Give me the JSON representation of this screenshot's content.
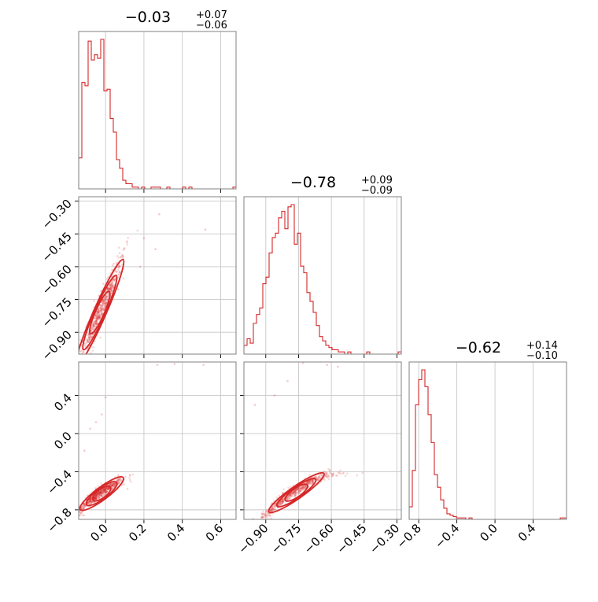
{
  "chart_data": {
    "type": "corner",
    "grid": true,
    "colors": {
      "series": "#d62728",
      "frame": "#808080",
      "grid": "#c8c8c8"
    },
    "panels": [
      {
        "kind": "hist",
        "row": 0,
        "col": 0,
        "title": {
          "median": "−0.03",
          "plus": "+0.07",
          "minus": "−0.06"
        },
        "xlim": [
          -0.14,
          0.68
        ],
        "bins": {
          "start": -0.14,
          "width": 0.0164,
          "counts": [
            18,
            62,
            60,
            86,
            75,
            78,
            76,
            87,
            57,
            58,
            41,
            33,
            17,
            12,
            5,
            3,
            3,
            1,
            1,
            0,
            1,
            0,
            0,
            1,
            1,
            1,
            0,
            0,
            1,
            0,
            0,
            0,
            0,
            1,
            0,
            1,
            0,
            0,
            0,
            0,
            0,
            0,
            0,
            0,
            0,
            0,
            0,
            0,
            0,
            1
          ]
        }
      },
      {
        "kind": "hist",
        "row": 1,
        "col": 1,
        "title": {
          "median": "−0.78",
          "plus": "+0.09",
          "minus": "−0.09"
        },
        "xlim": [
          -1.0,
          -0.28
        ],
        "bins": {
          "start": -1.0,
          "width": 0.0144,
          "counts": [
            4,
            7,
            5,
            14,
            18,
            21,
            32,
            35,
            46,
            53,
            55,
            62,
            65,
            57,
            67,
            68,
            50,
            55,
            40,
            37,
            28,
            24,
            19,
            13,
            8,
            6,
            4,
            3,
            2,
            2,
            1,
            1,
            0,
            1,
            0,
            0,
            0,
            0,
            0,
            1,
            0,
            0,
            0,
            0,
            0,
            0,
            0,
            0,
            0,
            1
          ]
        }
      },
      {
        "kind": "hist",
        "row": 2,
        "col": 2,
        "title": {
          "median": "−0.62",
          "plus": "+0.14",
          "minus": "−0.10"
        },
        "xlim": [
          -0.9,
          0.75
        ],
        "bins": {
          "start": -0.9,
          "width": 0.033,
          "counts": [
            9,
            35,
            82,
            100,
            107,
            95,
            75,
            55,
            32,
            23,
            14,
            8,
            4,
            3,
            2,
            1,
            1,
            1,
            0,
            1,
            0,
            0,
            0,
            0,
            0,
            0,
            0,
            0,
            0,
            0,
            0,
            0,
            0,
            0,
            0,
            0,
            0,
            0,
            0,
            0,
            0,
            0,
            0,
            0,
            0,
            0,
            0,
            0,
            1,
            1
          ]
        }
      },
      {
        "kind": "scatter",
        "row": 1,
        "col": 0,
        "xlim": [
          -0.14,
          0.68
        ],
        "ylim": [
          -1.0,
          -0.28
        ],
        "relation": {
          "slope": 2.0,
          "intercept": -0.75,
          "spread": 0.035
        },
        "outliers": [
          [
            0.28,
            -0.36
          ],
          [
            0.52,
            -0.43
          ],
          [
            0.2,
            -0.47
          ],
          [
            0.26,
            -0.52
          ],
          [
            0.18,
            -0.6
          ]
        ]
      },
      {
        "kind": "scatter",
        "row": 2,
        "col": 0,
        "xlim": [
          -0.14,
          0.68
        ],
        "ylim": [
          -0.9,
          0.75
        ],
        "relation": {
          "curve": "quadratic",
          "spread": 0.03
        },
        "outliers": [
          [
            0.27,
            0.72
          ],
          [
            0.36,
            0.73
          ],
          [
            0.51,
            0.72
          ],
          [
            -0.02,
            0.2
          ],
          [
            -0.05,
            0.12
          ],
          [
            0.0,
            0.38
          ],
          [
            -0.11,
            -0.18
          ],
          [
            -0.08,
            0.05
          ]
        ]
      },
      {
        "kind": "scatter",
        "row": 2,
        "col": 1,
        "xlim": [
          -1.0,
          -0.28
        ],
        "ylim": [
          -0.9,
          0.75
        ],
        "relation": {
          "curve": "quadratic",
          "spread": 0.03
        },
        "outliers": [
          [
            -0.62,
            0.72
          ],
          [
            -0.73,
            0.74
          ],
          [
            -0.57,
            0.7
          ],
          [
            -0.86,
            0.4
          ],
          [
            -0.95,
            0.3
          ],
          [
            -0.8,
            0.55
          ]
        ]
      }
    ],
    "ticks": {
      "p1": [
        "0.0",
        "0.2",
        "0.4",
        "0.6"
      ],
      "p2": [
        "−0.90",
        "−0.75",
        "−0.60",
        "−0.45",
        "−0.30"
      ],
      "p3": [
        "−0.8",
        "−0.4",
        "0.0",
        "0.4"
      ]
    }
  }
}
